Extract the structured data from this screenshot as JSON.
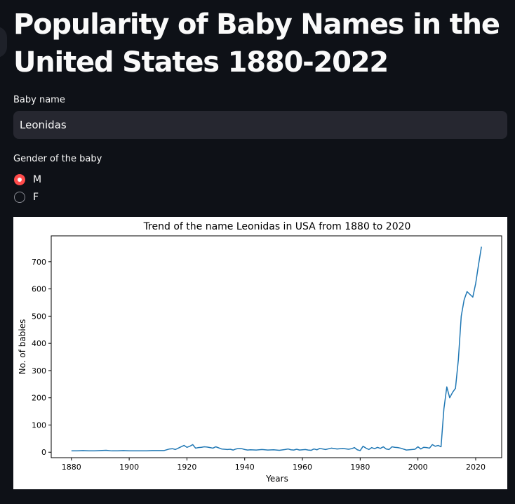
{
  "page": {
    "title": "Popularity of Baby Names in the United States 1880-2022"
  },
  "form": {
    "name_label": "Baby name",
    "name_value": "Leonidas",
    "gender_label": "Gender of the baby",
    "gender_options": [
      "M",
      "F"
    ],
    "gender_selected": "M"
  },
  "colors": {
    "background": "#0e1117",
    "input_bg": "#262730",
    "radio_accent": "#ff4b4b",
    "line": "#1f77b4"
  },
  "chart_data": {
    "type": "line",
    "title": "Trend of the name Leonidas in USA from 1880 to 2020",
    "xlabel": "Years",
    "ylabel": "No. of babies",
    "xlim": [
      1873,
      2029
    ],
    "ylim": [
      -20,
      795
    ],
    "xticks": [
      1880,
      1900,
      1920,
      1940,
      1960,
      1980,
      2000,
      2020
    ],
    "yticks": [
      0,
      100,
      200,
      300,
      400,
      500,
      600,
      700
    ],
    "grid": false,
    "series": [
      {
        "x": [
          1880,
          1882,
          1884,
          1886,
          1888,
          1890,
          1892,
          1894,
          1896,
          1898,
          1900,
          1902,
          1904,
          1906,
          1908,
          1910,
          1912,
          1914,
          1915,
          1916,
          1917,
          1918,
          1919,
          1920,
          1921,
          1922,
          1923,
          1924,
          1925,
          1926,
          1927,
          1928,
          1929,
          1930,
          1932,
          1934,
          1935,
          1936,
          1937,
          1938,
          1939,
          1940,
          1941,
          1942,
          1944,
          1946,
          1948,
          1950,
          1952,
          1954,
          1955,
          1956,
          1957,
          1958,
          1959,
          1960,
          1961,
          1962,
          1963,
          1964,
          1965,
          1966,
          1968,
          1970,
          1972,
          1974,
          1976,
          1977,
          1978,
          1979,
          1980,
          1981,
          1982,
          1983,
          1984,
          1985,
          1986,
          1987,
          1988,
          1989,
          1990,
          1991,
          1992,
          1993,
          1994,
          1996,
          1997,
          1998,
          1999,
          2000,
          2001,
          2002,
          2003,
          2004,
          2005,
          2006,
          2007,
          2008,
          2009,
          2010,
          2011,
          2012,
          2013,
          2014,
          2015,
          2016,
          2017,
          2018,
          2019,
          2020,
          2021,
          2022
        ],
        "y": [
          5,
          5,
          6,
          5,
          5,
          6,
          7,
          5,
          5,
          6,
          5,
          5,
          5,
          5,
          6,
          6,
          6,
          12,
          13,
          10,
          15,
          20,
          25,
          18,
          22,
          28,
          15,
          17,
          18,
          20,
          19,
          17,
          15,
          20,
          12,
          10,
          11,
          8,
          12,
          14,
          13,
          10,
          8,
          9,
          8,
          10,
          8,
          9,
          7,
          10,
          12,
          9,
          8,
          11,
          8,
          9,
          10,
          8,
          7,
          12,
          9,
          14,
          10,
          15,
          12,
          14,
          11,
          13,
          17,
          9,
          6,
          22,
          15,
          10,
          17,
          13,
          18,
          14,
          20,
          12,
          10,
          20,
          18,
          17,
          15,
          8,
          9,
          10,
          11,
          20,
          12,
          18,
          17,
          15,
          28,
          22,
          25,
          20,
          160,
          240,
          200,
          220,
          235,
          340,
          500,
          560,
          590,
          580,
          570,
          620,
          690,
          755
        ]
      }
    ]
  }
}
